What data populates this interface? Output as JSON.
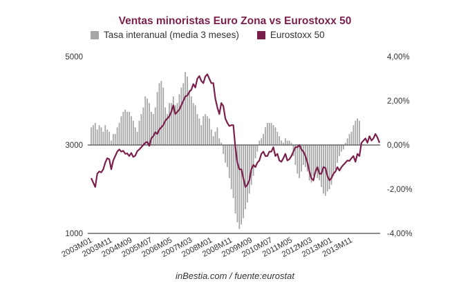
{
  "chart_data": {
    "type": "bar+line",
    "title": "Ventas minoristas Euro Zona vs Eurostoxx 50",
    "source": "inBestia.com / fuente:eurostat",
    "legend": [
      {
        "name": "Tasa interanual (media 3 meses)",
        "color": "#a6a6a6",
        "type": "bar"
      },
      {
        "name": "Eurostoxx 50",
        "color": "#7a1f4c",
        "type": "line"
      }
    ],
    "legend_position": "top-left",
    "grid": false,
    "left_axis": {
      "min": 1000,
      "max": 5000,
      "ticks": [
        "1000",
        "3000",
        "5000"
      ],
      "tick_values": [
        1000,
        3000,
        5000
      ]
    },
    "right_axis": {
      "min": -4,
      "max": 4,
      "ticks": [
        "-4,00%",
        "-2,00%",
        "0,00%",
        "2,00%",
        "4,00%"
      ],
      "tick_values": [
        -4,
        -2,
        0,
        2,
        4
      ]
    },
    "start_month": "2003M01",
    "x_tick_labels": [
      "2003M01",
      "2003M11",
      "2004M09",
      "2005M07",
      "2006M05",
      "2007M03",
      "2008M01",
      "2008M11",
      "2009M09",
      "2010M07",
      "2011M05",
      "2012M03",
      "2013M01",
      "2013M11"
    ],
    "x_tick_index": [
      0,
      10,
      20,
      30,
      40,
      50,
      60,
      70,
      80,
      90,
      100,
      110,
      120,
      130
    ],
    "series": [
      {
        "name": "Tasa interanual (media 3 meses)",
        "axis": "right",
        "unit": "%",
        "values": [
          0.8,
          0.9,
          1.0,
          0.7,
          0.9,
          0.8,
          0.6,
          0.9,
          0.7,
          0.6,
          0.2,
          0.5,
          0.5,
          0.8,
          1.0,
          1.3,
          1.5,
          1.6,
          1.5,
          1.5,
          1.3,
          1.1,
          0.8,
          0.6,
          1.1,
          1.4,
          1.7,
          2.2,
          2.1,
          1.9,
          1.5,
          1.4,
          1.7,
          2.4,
          2.8,
          2.9,
          2.6,
          1.7,
          1.4,
          1.9,
          1.9,
          2.2,
          1.8,
          1.9,
          2.3,
          2.6,
          2.8,
          3.3,
          3.1,
          2.5,
          2.2,
          1.9,
          1.8,
          1.4,
          1.2,
          0.9,
          1.3,
          1.4,
          1.3,
          1.2,
          0.7,
          0.4,
          0.6,
          0.8,
          0.3,
          0.1,
          -0.4,
          -0.8,
          -1.0,
          -1.5,
          -2.0,
          -2.4,
          -3.1,
          -3.5,
          -3.8,
          -3.6,
          -3.3,
          -2.9,
          -2.6,
          -2.2,
          -1.8,
          -1.4,
          -0.6,
          -0.3,
          0.2,
          0.3,
          0.5,
          0.8,
          1.0,
          1.0,
          1.0,
          0.9,
          0.8,
          0.6,
          0.4,
          0.2,
          0.1,
          0.3,
          0.2,
          0.2,
          0.1,
          -0.5,
          -0.9,
          -1.3,
          -1.5,
          -1.2,
          -0.9,
          -1.0,
          -1.2,
          -1.6,
          -1.7,
          -1.4,
          -1.3,
          -1.5,
          -1.6,
          -1.9,
          -2.2,
          -2.3,
          -2.1,
          -2.0,
          -1.8,
          -1.4,
          -1.1,
          -0.8,
          -0.5,
          -0.3,
          -0.2,
          0.1,
          0.3,
          0.5,
          0.6,
          0.9,
          1.1,
          1.2,
          1.1
        ],
        "color": "#a6a6a6"
      },
      {
        "name": "Eurostoxx 50",
        "axis": "left",
        "unit": "points",
        "values": [
          2250,
          2150,
          2050,
          2350,
          2400,
          2380,
          2450,
          2600,
          2700,
          2680,
          2450,
          2650,
          2750,
          2850,
          2900,
          2850,
          2870,
          2800,
          2810,
          2750,
          2820,
          2730,
          2760,
          2860,
          2900,
          2950,
          3000,
          3050,
          3070,
          2980,
          3150,
          3200,
          3290,
          3250,
          3350,
          3400,
          3450,
          3550,
          3600,
          3650,
          3750,
          3900,
          3700,
          3750,
          3800,
          3900,
          4000,
          4100,
          4120,
          4200,
          4250,
          4380,
          4300,
          4500,
          4560,
          4450,
          4400,
          4550,
          4600,
          4500,
          4400,
          4400,
          4050,
          3850,
          3700,
          3950,
          3880,
          3600,
          3500,
          3430,
          3450,
          3450,
          2950,
          2600,
          2450,
          2450,
          2250,
          2050,
          2100,
          2200,
          2450,
          2550,
          2500,
          2600,
          2650,
          2800,
          2850,
          2750,
          2750,
          2850,
          2850,
          2950,
          2750,
          2800,
          2650,
          2620,
          2700,
          2800,
          2650,
          2680,
          2750,
          2850,
          2950,
          2950,
          3000,
          2900,
          2850,
          2750,
          2600,
          2400,
          2250,
          2200,
          2400,
          2500,
          2350,
          2350,
          2500,
          2480,
          2300,
          2200,
          2250,
          2350,
          2400,
          2500,
          2420,
          2500,
          2550,
          2600,
          2650,
          2640,
          2700,
          2750,
          2620,
          2800,
          2750,
          3050,
          3100,
          3150,
          3050,
          3200,
          3100,
          3150,
          3250,
          3170,
          3050
        ],
        "color": "#7a1f4c"
      }
    ]
  }
}
